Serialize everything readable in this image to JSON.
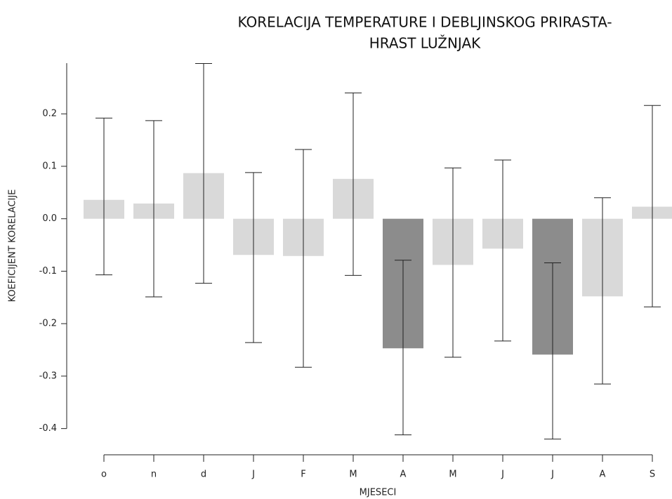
{
  "chart_data": {
    "type": "bar",
    "title": [
      "KORELACIJA TEMPERATURE I DEBLJINSKOG PRIRASTA-",
      "HRAST LUŽNJAK"
    ],
    "x_label": "MJESECI",
    "y_label": "KOEFICIJENT KORELACIJE",
    "categories": [
      "o",
      "n",
      "d",
      "J",
      "F",
      "M",
      "A",
      "M",
      "J",
      "J",
      "A",
      "S"
    ],
    "series": [
      {
        "values": [
          0.036,
          0.029,
          0.087,
          -0.069,
          -0.071,
          0.076,
          -0.247,
          -0.088,
          -0.057,
          -0.259,
          -0.148,
          0.023
        ],
        "lower": [
          -0.107,
          -0.149,
          -0.123,
          -0.236,
          -0.283,
          -0.108,
          -0.412,
          -0.264,
          -0.233,
          -0.42,
          -0.315,
          -0.168
        ],
        "upper": [
          0.192,
          0.187,
          0.296,
          0.088,
          0.132,
          0.24,
          -0.079,
          0.097,
          0.112,
          -0.084,
          0.04,
          0.216
        ],
        "colors": [
          "#d9d9d9",
          "#d9d9d9",
          "#d9d9d9",
          "#d9d9d9",
          "#d9d9d9",
          "#d9d9d9",
          "#8c8c8c",
          "#d9d9d9",
          "#d9d9d9",
          "#8c8c8c",
          "#d9d9d9",
          "#d9d9d9"
        ]
      }
    ],
    "ylim": [
      -0.45,
      0.31
    ],
    "yticks": [
      -0.4,
      -0.3,
      -0.2,
      -0.1,
      {
        "value": 0,
        "label": "0.0"
      },
      0.1,
      0.2
    ]
  }
}
